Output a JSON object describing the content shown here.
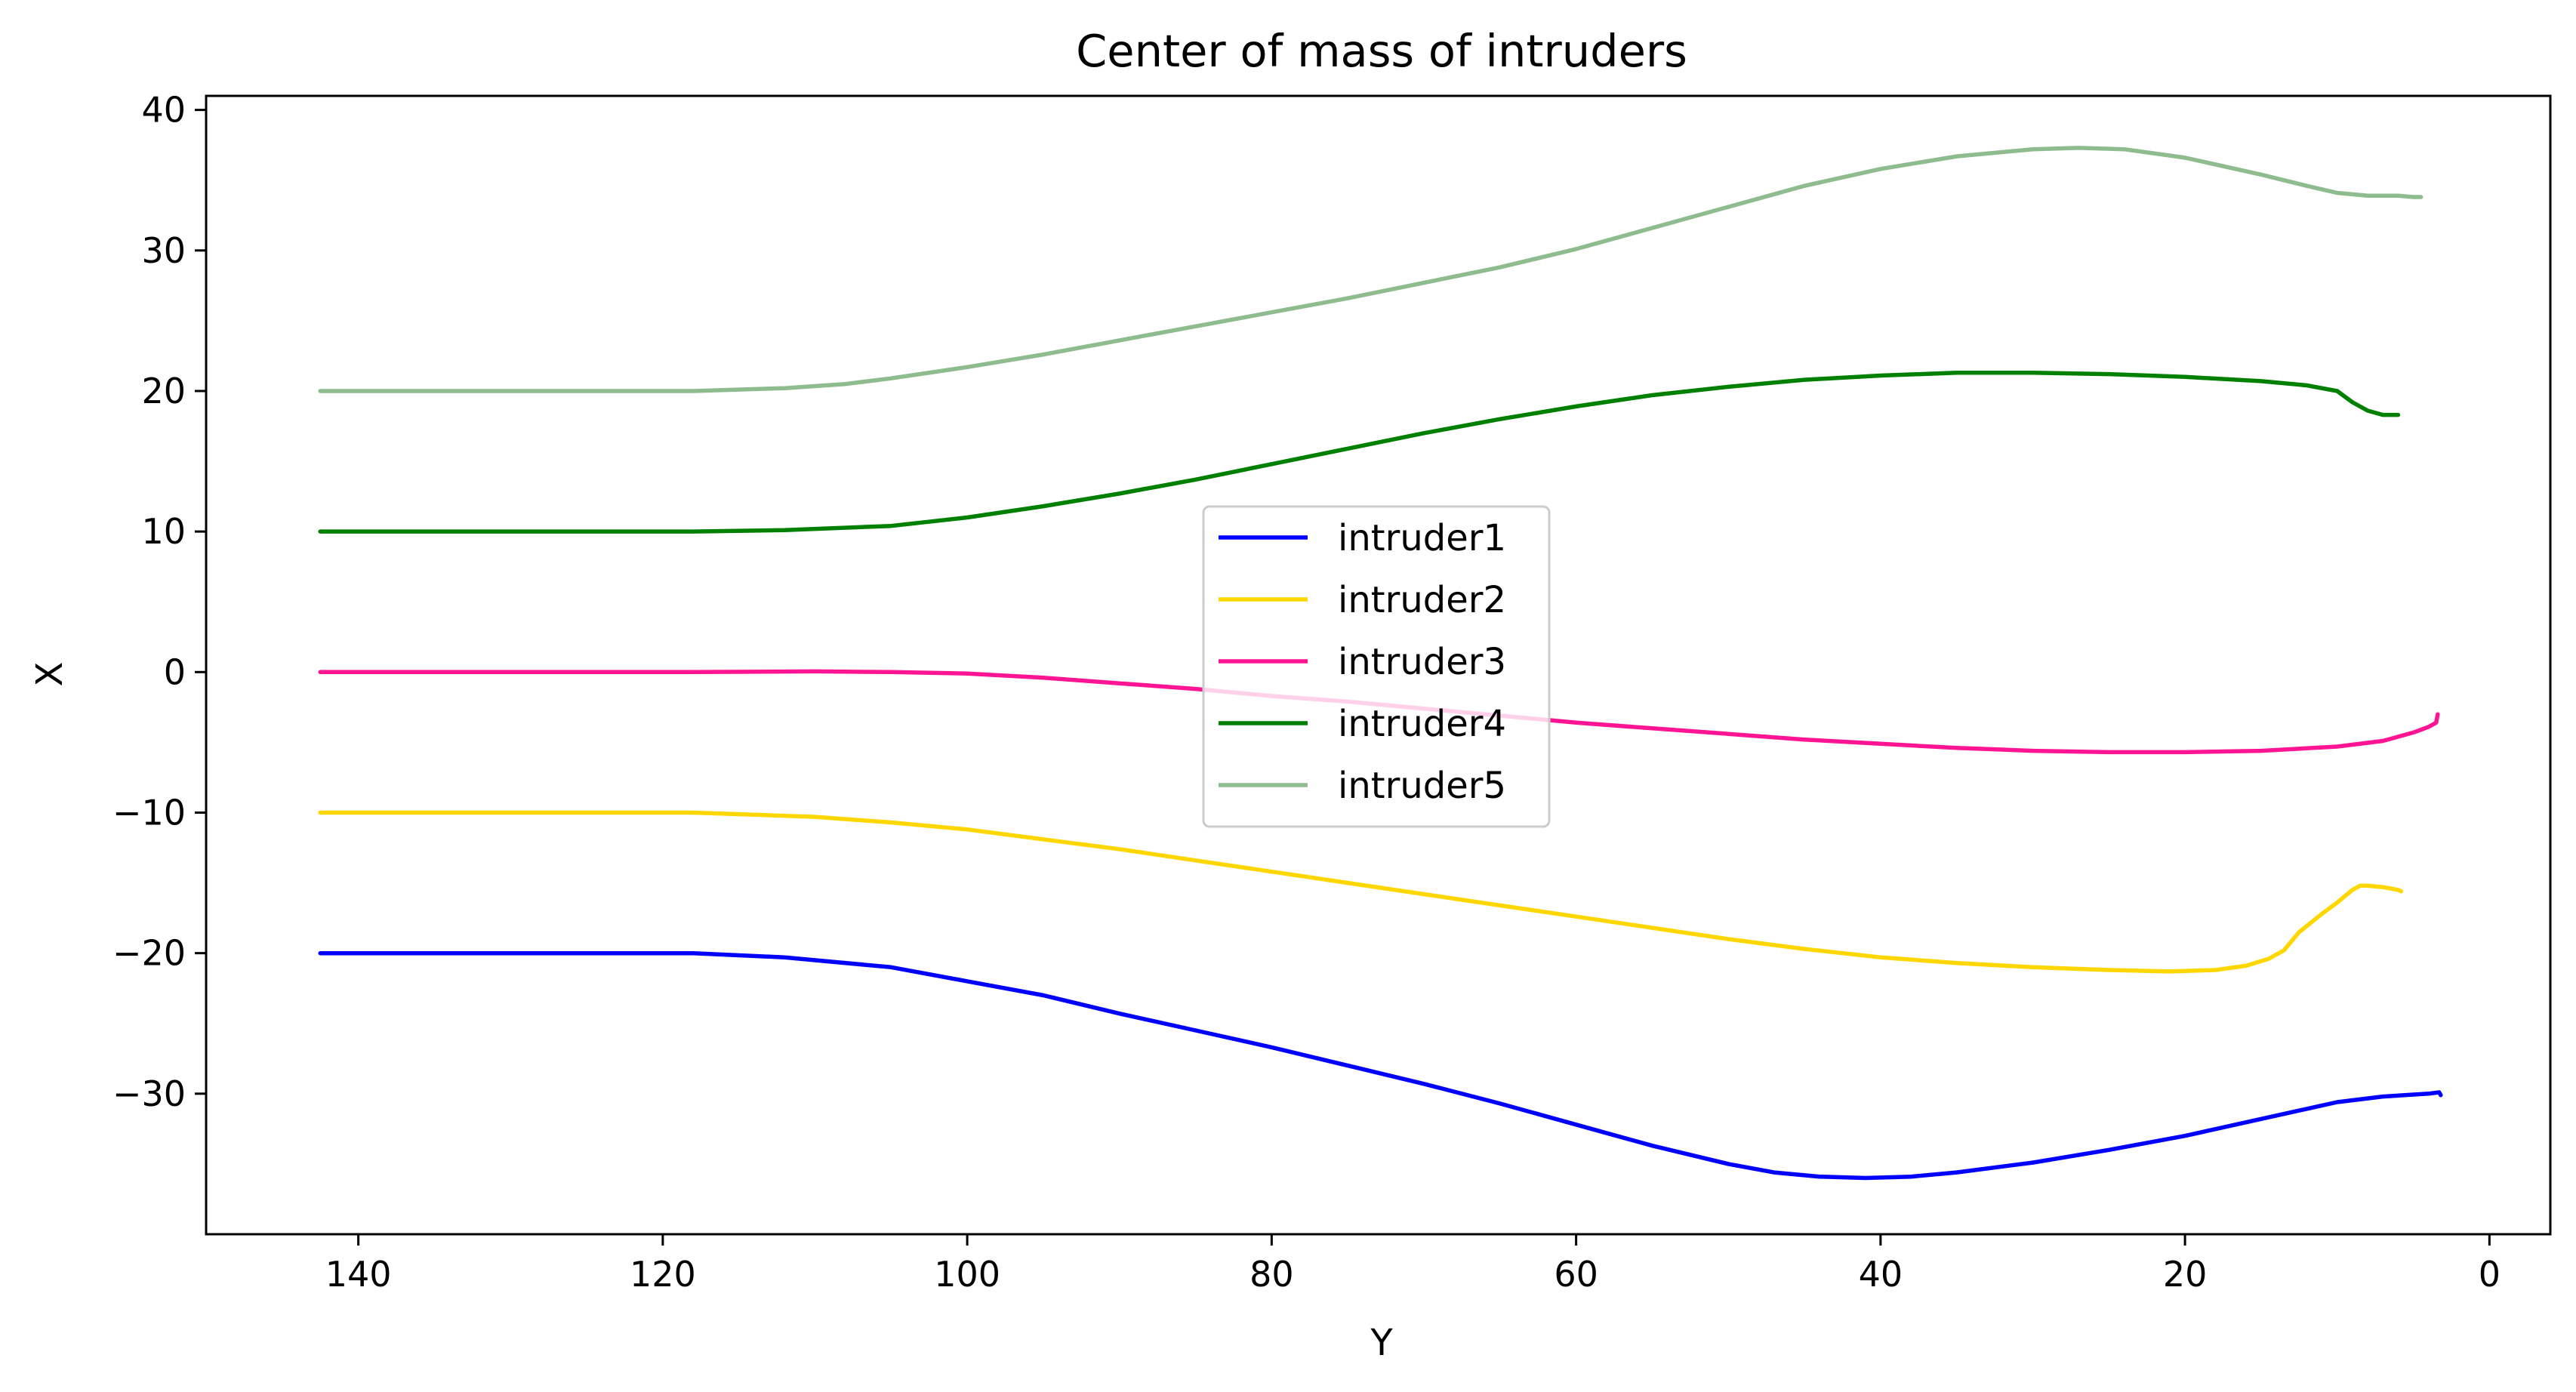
{
  "chart_data": {
    "type": "line",
    "title": "Center of mass of intruders",
    "xlabel": "Y",
    "ylabel": "X",
    "xlim": [
      150,
      -4
    ],
    "ylim": [
      -40,
      41
    ],
    "x_inverted": true,
    "grid": false,
    "legend_position": "center",
    "xticks": [
      140,
      120,
      100,
      80,
      60,
      40,
      20,
      0
    ],
    "xtick_labels": [
      "140",
      "120",
      "100",
      "80",
      "60",
      "40",
      "20",
      "0"
    ],
    "yticks": [
      40,
      30,
      20,
      10,
      0,
      -10,
      -20,
      -30
    ],
    "ytick_labels": [
      "40",
      "30",
      "20",
      "10",
      "0",
      "−10",
      "−20",
      "−30"
    ],
    "series": [
      {
        "name": "intruder1",
        "color": "#0000ff",
        "points": [
          [
            142.5,
            -20
          ],
          [
            135,
            -20
          ],
          [
            125,
            -20
          ],
          [
            118,
            -20
          ],
          [
            112,
            -20.3
          ],
          [
            105,
            -21
          ],
          [
            100,
            -22
          ],
          [
            95,
            -23
          ],
          [
            90,
            -24.3
          ],
          [
            85,
            -25.5
          ],
          [
            80,
            -26.7
          ],
          [
            75,
            -28
          ],
          [
            70,
            -29.3
          ],
          [
            65,
            -30.7
          ],
          [
            60,
            -32.2
          ],
          [
            55,
            -33.7
          ],
          [
            50,
            -35
          ],
          [
            47,
            -35.6
          ],
          [
            44,
            -35.9
          ],
          [
            41,
            -36
          ],
          [
            38,
            -35.9
          ],
          [
            35,
            -35.6
          ],
          [
            30,
            -34.9
          ],
          [
            25,
            -34
          ],
          [
            20,
            -33
          ],
          [
            15,
            -31.8
          ],
          [
            10,
            -30.6
          ],
          [
            7,
            -30.2
          ],
          [
            4,
            -30
          ],
          [
            3.3,
            -29.9
          ],
          [
            3.2,
            -30.1
          ]
        ]
      },
      {
        "name": "intruder2",
        "color": "#ffd700",
        "points": [
          [
            142.5,
            -10
          ],
          [
            135,
            -10
          ],
          [
            125,
            -10
          ],
          [
            118,
            -10
          ],
          [
            110,
            -10.3
          ],
          [
            105,
            -10.7
          ],
          [
            100,
            -11.2
          ],
          [
            95,
            -11.9
          ],
          [
            90,
            -12.6
          ],
          [
            85,
            -13.4
          ],
          [
            80,
            -14.2
          ],
          [
            75,
            -15
          ],
          [
            70,
            -15.8
          ],
          [
            65,
            -16.6
          ],
          [
            60,
            -17.4
          ],
          [
            55,
            -18.2
          ],
          [
            50,
            -19
          ],
          [
            45,
            -19.7
          ],
          [
            40,
            -20.3
          ],
          [
            35,
            -20.7
          ],
          [
            30,
            -21
          ],
          [
            25,
            -21.2
          ],
          [
            21,
            -21.3
          ],
          [
            18,
            -21.2
          ],
          [
            16,
            -20.9
          ],
          [
            14.5,
            -20.4
          ],
          [
            13.5,
            -19.8
          ],
          [
            12.5,
            -18.5
          ],
          [
            11,
            -17.2
          ],
          [
            10,
            -16.4
          ],
          [
            9,
            -15.5
          ],
          [
            8.5,
            -15.2
          ],
          [
            8,
            -15.2
          ],
          [
            7,
            -15.3
          ],
          [
            6,
            -15.5
          ],
          [
            5.8,
            -15.6
          ]
        ]
      },
      {
        "name": "intruder3",
        "color": "#ff1493",
        "points": [
          [
            142.5,
            0
          ],
          [
            135,
            0
          ],
          [
            125,
            0
          ],
          [
            118,
            0
          ],
          [
            110,
            0.05
          ],
          [
            105,
            0
          ],
          [
            100,
            -0.1
          ],
          [
            95,
            -0.4
          ],
          [
            90,
            -0.8
          ],
          [
            85,
            -1.2
          ],
          [
            80,
            -1.7
          ],
          [
            75,
            -2.1
          ],
          [
            70,
            -2.6
          ],
          [
            65,
            -3.1
          ],
          [
            60,
            -3.6
          ],
          [
            55,
            -4
          ],
          [
            50,
            -4.4
          ],
          [
            45,
            -4.8
          ],
          [
            40,
            -5.1
          ],
          [
            35,
            -5.4
          ],
          [
            30,
            -5.6
          ],
          [
            25,
            -5.7
          ],
          [
            20,
            -5.7
          ],
          [
            15,
            -5.6
          ],
          [
            10,
            -5.3
          ],
          [
            7,
            -4.9
          ],
          [
            5,
            -4.3
          ],
          [
            4,
            -3.9
          ],
          [
            3.5,
            -3.6
          ],
          [
            3.4,
            -3
          ]
        ]
      },
      {
        "name": "intruder4",
        "color": "#008000",
        "points": [
          [
            142.5,
            10
          ],
          [
            135,
            10
          ],
          [
            125,
            10
          ],
          [
            118,
            10
          ],
          [
            112,
            10.1
          ],
          [
            105,
            10.4
          ],
          [
            100,
            11
          ],
          [
            95,
            11.8
          ],
          [
            90,
            12.7
          ],
          [
            85,
            13.7
          ],
          [
            80,
            14.8
          ],
          [
            75,
            15.9
          ],
          [
            70,
            17
          ],
          [
            65,
            18
          ],
          [
            60,
            18.9
          ],
          [
            55,
            19.7
          ],
          [
            50,
            20.3
          ],
          [
            45,
            20.8
          ],
          [
            40,
            21.1
          ],
          [
            35,
            21.3
          ],
          [
            30,
            21.3
          ],
          [
            25,
            21.2
          ],
          [
            20,
            21
          ],
          [
            15,
            20.7
          ],
          [
            12,
            20.4
          ],
          [
            10,
            20
          ],
          [
            9,
            19.2
          ],
          [
            8,
            18.6
          ],
          [
            7,
            18.3
          ],
          [
            6.5,
            18.3
          ],
          [
            6,
            18.3
          ]
        ]
      },
      {
        "name": "intruder5",
        "color": "#8fbc8f",
        "points": [
          [
            142.5,
            20
          ],
          [
            135,
            20
          ],
          [
            125,
            20
          ],
          [
            118,
            20
          ],
          [
            112,
            20.2
          ],
          [
            108,
            20.5
          ],
          [
            105,
            20.9
          ],
          [
            100,
            21.7
          ],
          [
            95,
            22.6
          ],
          [
            90,
            23.6
          ],
          [
            85,
            24.6
          ],
          [
            80,
            25.6
          ],
          [
            75,
            26.6
          ],
          [
            70,
            27.7
          ],
          [
            65,
            28.8
          ],
          [
            60,
            30.1
          ],
          [
            55,
            31.6
          ],
          [
            50,
            33.1
          ],
          [
            45,
            34.6
          ],
          [
            40,
            35.8
          ],
          [
            35,
            36.7
          ],
          [
            30,
            37.2
          ],
          [
            27,
            37.3
          ],
          [
            24,
            37.2
          ],
          [
            20,
            36.6
          ],
          [
            15,
            35.4
          ],
          [
            12,
            34.6
          ],
          [
            10,
            34.1
          ],
          [
            8,
            33.9
          ],
          [
            6,
            33.9
          ],
          [
            5,
            33.8
          ],
          [
            4.5,
            33.8
          ]
        ]
      }
    ]
  }
}
